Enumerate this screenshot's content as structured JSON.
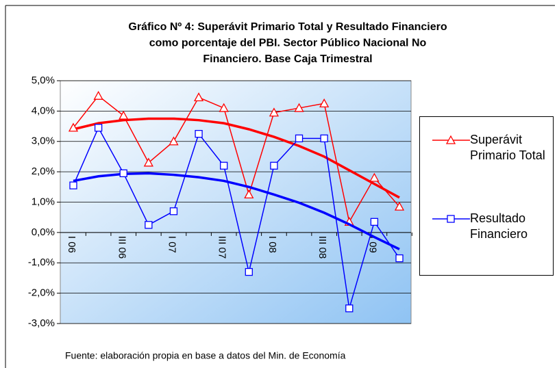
{
  "chart_data": {
    "type": "line",
    "title": [
      "Gráfico Nº 4:  Superávit Primario Total y Resultado Financiero",
      "como porcentaje del PBI. Sector Público Nacional No",
      "Financiero. Base Caja Trimestral"
    ],
    "categories": [
      "I 06",
      null,
      "III 06",
      null,
      "I 07",
      null,
      "III 07",
      null,
      "I 08",
      null,
      "III 08",
      null,
      "I 09",
      null
    ],
    "series": [
      {
        "name": "Superávit Primario Total",
        "color": "#ff0000",
        "marker": "triangle",
        "values": [
          3.45,
          4.5,
          3.85,
          2.3,
          3.0,
          4.45,
          4.1,
          1.25,
          3.95,
          4.1,
          4.25,
          0.35,
          1.8,
          0.85
        ],
        "trend": [
          3.4,
          3.6,
          3.7,
          3.75,
          3.75,
          3.7,
          3.6,
          3.4,
          3.15,
          2.85,
          2.5,
          2.05,
          1.6,
          1.15
        ]
      },
      {
        "name": "Resultado Financiero",
        "color": "#0000ff",
        "marker": "square",
        "values": [
          1.55,
          3.45,
          1.95,
          0.25,
          0.7,
          3.25,
          2.2,
          -1.3,
          2.2,
          3.1,
          3.1,
          -2.5,
          0.35,
          -0.85
        ],
        "trend": [
          1.7,
          1.85,
          1.93,
          1.95,
          1.9,
          1.82,
          1.7,
          1.5,
          1.25,
          0.98,
          0.65,
          0.27,
          -0.15,
          -0.55
        ]
      }
    ],
    "ylim": [
      -3,
      5
    ],
    "yticks": [
      {
        "value": -3,
        "label": "-3,0%"
      },
      {
        "value": -2,
        "label": "-2,0%"
      },
      {
        "value": -1,
        "label": "-1,0%"
      },
      {
        "value": 0,
        "label": "0,0%"
      },
      {
        "value": 1,
        "label": "1,0%"
      },
      {
        "value": 2,
        "label": "2,0%"
      },
      {
        "value": 3,
        "label": "3,0%"
      },
      {
        "value": 4,
        "label": "4,0%"
      },
      {
        "value": 5,
        "label": "5,0%"
      }
    ],
    "grid": true,
    "legend": "right",
    "source": "Fuente: elaboración propia en base a datos del Min. de Economía"
  }
}
